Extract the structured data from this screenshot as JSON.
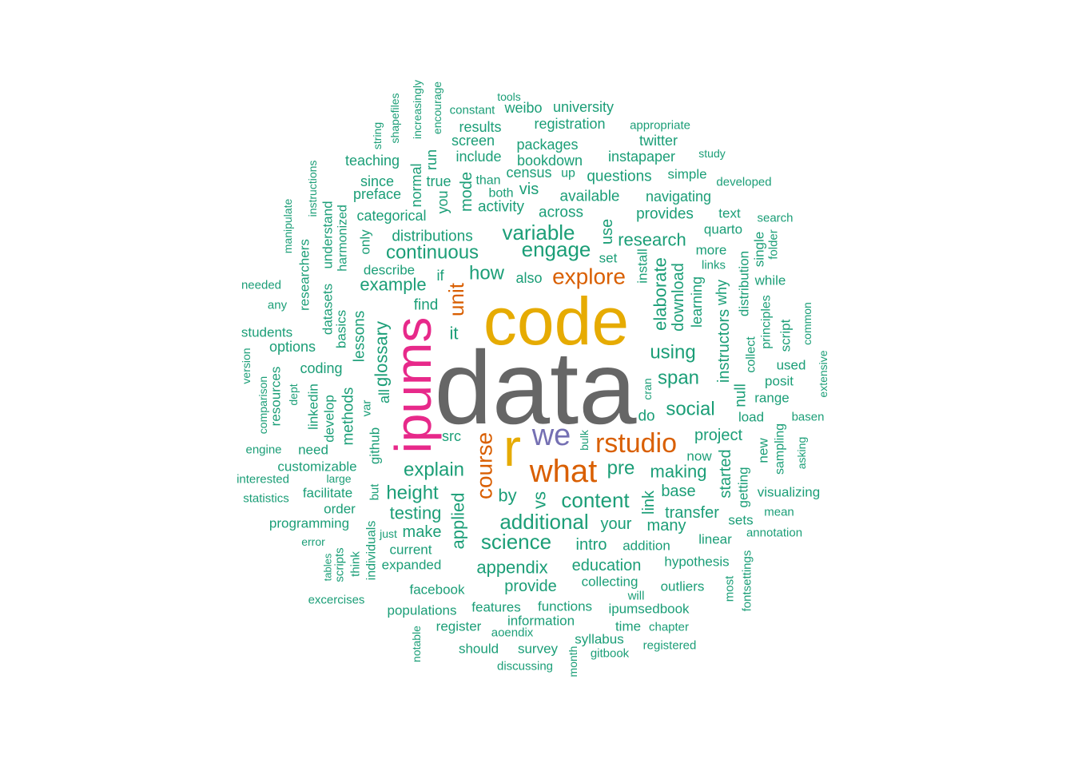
{
  "palette": {
    "grey": "#666666",
    "gold": "#E6AB02",
    "magenta": "#E7298A",
    "purple": "#7570B3",
    "orange": "#D95F02",
    "teal": "#1B9E77"
  },
  "words": [
    {
      "text": "data",
      "color": "grey"
    },
    {
      "text": "code",
      "color": "gold"
    },
    {
      "text": "ipums",
      "color": "magenta"
    },
    {
      "text": "r",
      "color": "gold"
    },
    {
      "text": "we",
      "color": "purple"
    },
    {
      "text": "rstudio",
      "color": "orange"
    },
    {
      "text": "what",
      "color": "orange"
    },
    {
      "text": "course",
      "color": "orange"
    },
    {
      "text": "explore",
      "color": "orange"
    },
    {
      "text": "unit",
      "color": "orange"
    },
    {
      "text": "variable",
      "color": "teal"
    },
    {
      "text": "engage",
      "color": "teal"
    },
    {
      "text": "continuous",
      "color": "teal"
    },
    {
      "text": "research",
      "color": "teal"
    },
    {
      "text": "example",
      "color": "teal"
    },
    {
      "text": "how",
      "color": "teal"
    },
    {
      "text": "elaborate",
      "color": "teal"
    },
    {
      "text": "using",
      "color": "teal"
    },
    {
      "text": "span",
      "color": "teal"
    },
    {
      "text": "social",
      "color": "teal"
    },
    {
      "text": "glossary",
      "color": "teal"
    },
    {
      "text": "explain",
      "color": "teal"
    },
    {
      "text": "height",
      "color": "teal"
    },
    {
      "text": "additional",
      "color": "teal"
    },
    {
      "text": "content",
      "color": "teal"
    },
    {
      "text": "science",
      "color": "teal"
    },
    {
      "text": "testing",
      "color": "teal"
    },
    {
      "text": "applied",
      "color": "teal"
    },
    {
      "text": "appendix",
      "color": "teal"
    },
    {
      "text": "making",
      "color": "teal"
    },
    {
      "text": "project",
      "color": "teal"
    },
    {
      "text": "pre",
      "color": "teal"
    },
    {
      "text": "vs",
      "color": "teal"
    },
    {
      "text": "by",
      "color": "teal"
    },
    {
      "text": "link",
      "color": "teal"
    },
    {
      "text": "base",
      "color": "teal"
    },
    {
      "text": "transfer",
      "color": "teal"
    },
    {
      "text": "your",
      "color": "teal"
    },
    {
      "text": "many",
      "color": "teal"
    },
    {
      "text": "intro",
      "color": "teal"
    },
    {
      "text": "education",
      "color": "teal"
    },
    {
      "text": "provide",
      "color": "teal"
    },
    {
      "text": "make",
      "color": "teal"
    },
    {
      "text": "download",
      "color": "teal"
    },
    {
      "text": "instructors",
      "color": "teal"
    },
    {
      "text": "started",
      "color": "teal"
    },
    {
      "text": "distributions",
      "color": "teal"
    },
    {
      "text": "across",
      "color": "teal"
    },
    {
      "text": "activity",
      "color": "teal"
    },
    {
      "text": "available",
      "color": "teal"
    },
    {
      "text": "provides",
      "color": "teal"
    },
    {
      "text": "questions",
      "color": "teal"
    },
    {
      "text": "navigating",
      "color": "teal"
    },
    {
      "text": "instapaper",
      "color": "teal"
    },
    {
      "text": "bookdown",
      "color": "teal"
    },
    {
      "text": "packages",
      "color": "teal"
    },
    {
      "text": "twitter",
      "color": "teal"
    },
    {
      "text": "university",
      "color": "teal"
    },
    {
      "text": "weibo",
      "color": "teal"
    },
    {
      "text": "registration",
      "color": "teal"
    },
    {
      "text": "results",
      "color": "teal"
    },
    {
      "text": "screen",
      "color": "teal"
    },
    {
      "text": "include",
      "color": "teal"
    },
    {
      "text": "census",
      "color": "teal"
    },
    {
      "text": "up",
      "color": "teal"
    },
    {
      "text": "vis",
      "color": "teal"
    },
    {
      "text": "both",
      "color": "teal"
    },
    {
      "text": "than",
      "color": "teal"
    },
    {
      "text": "mode",
      "color": "teal"
    },
    {
      "text": "true",
      "color": "teal"
    },
    {
      "text": "run",
      "color": "teal"
    },
    {
      "text": "normal",
      "color": "teal"
    },
    {
      "text": "you",
      "color": "teal"
    },
    {
      "text": "increasingly",
      "color": "teal"
    },
    {
      "text": "encourage",
      "color": "teal"
    },
    {
      "text": "tools",
      "color": "teal"
    },
    {
      "text": "constant",
      "color": "teal"
    },
    {
      "text": "appropriate",
      "color": "teal"
    },
    {
      "text": "study",
      "color": "teal"
    },
    {
      "text": "simple",
      "color": "teal"
    },
    {
      "text": "developed",
      "color": "teal"
    },
    {
      "text": "teaching",
      "color": "teal"
    },
    {
      "text": "since",
      "color": "teal"
    },
    {
      "text": "preface",
      "color": "teal"
    },
    {
      "text": "categorical",
      "color": "teal"
    },
    {
      "text": "only",
      "color": "teal"
    },
    {
      "text": "describe",
      "color": "teal"
    },
    {
      "text": "if",
      "color": "teal"
    },
    {
      "text": "find",
      "color": "teal"
    },
    {
      "text": "it",
      "color": "teal"
    },
    {
      "text": "also",
      "color": "teal"
    },
    {
      "text": "use",
      "color": "teal"
    },
    {
      "text": "set",
      "color": "teal"
    },
    {
      "text": "install",
      "color": "teal"
    },
    {
      "text": "more",
      "color": "teal"
    },
    {
      "text": "links",
      "color": "teal"
    },
    {
      "text": "quarto",
      "color": "teal"
    },
    {
      "text": "text",
      "color": "teal"
    },
    {
      "text": "search",
      "color": "teal"
    },
    {
      "text": "folder",
      "color": "teal"
    },
    {
      "text": "single",
      "color": "teal"
    },
    {
      "text": "while",
      "color": "teal"
    },
    {
      "text": "principles",
      "color": "teal"
    },
    {
      "text": "distribution",
      "color": "teal"
    },
    {
      "text": "why",
      "color": "teal"
    },
    {
      "text": "learning",
      "color": "teal"
    },
    {
      "text": "collect",
      "color": "teal"
    },
    {
      "text": "script",
      "color": "teal"
    },
    {
      "text": "common",
      "color": "teal"
    },
    {
      "text": "used",
      "color": "teal"
    },
    {
      "text": "posit",
      "color": "teal"
    },
    {
      "text": "range",
      "color": "teal"
    },
    {
      "text": "extensive",
      "color": "teal"
    },
    {
      "text": "load",
      "color": "teal"
    },
    {
      "text": "basen",
      "color": "teal"
    },
    {
      "text": "null",
      "color": "teal"
    },
    {
      "text": "cran",
      "color": "teal"
    },
    {
      "text": "do",
      "color": "teal"
    },
    {
      "text": "bulk",
      "color": "teal"
    },
    {
      "text": "now",
      "color": "teal"
    },
    {
      "text": "new",
      "color": "teal"
    },
    {
      "text": "sampling",
      "color": "teal"
    },
    {
      "text": "asking",
      "color": "teal"
    },
    {
      "text": "getting",
      "color": "teal"
    },
    {
      "text": "visualizing",
      "color": "teal"
    },
    {
      "text": "sets",
      "color": "teal"
    },
    {
      "text": "mean",
      "color": "teal"
    },
    {
      "text": "linear",
      "color": "teal"
    },
    {
      "text": "annotation",
      "color": "teal"
    },
    {
      "text": "addition",
      "color": "teal"
    },
    {
      "text": "hypothesis",
      "color": "teal"
    },
    {
      "text": "fontsettings",
      "color": "teal"
    },
    {
      "text": "students",
      "color": "teal"
    },
    {
      "text": "most",
      "color": "teal"
    },
    {
      "text": "outliers",
      "color": "teal"
    },
    {
      "text": "collecting",
      "color": "teal"
    },
    {
      "text": "will",
      "color": "teal"
    },
    {
      "text": "ipumsedbook",
      "color": "teal"
    },
    {
      "text": "time",
      "color": "teal"
    },
    {
      "text": "chapter",
      "color": "teal"
    },
    {
      "text": "syllabus",
      "color": "teal"
    },
    {
      "text": "registered",
      "color": "teal"
    },
    {
      "text": "gitbook",
      "color": "teal"
    },
    {
      "text": "month",
      "color": "teal"
    },
    {
      "text": "functions",
      "color": "teal"
    },
    {
      "text": "features",
      "color": "teal"
    },
    {
      "text": "information",
      "color": "teal"
    },
    {
      "text": "aoendix",
      "color": "teal"
    },
    {
      "text": "survey",
      "color": "teal"
    },
    {
      "text": "should",
      "color": "teal"
    },
    {
      "text": "discussing",
      "color": "teal"
    },
    {
      "text": "register",
      "color": "teal"
    },
    {
      "text": "notable",
      "color": "teal"
    },
    {
      "text": "populations",
      "color": "teal"
    },
    {
      "text": "facebook",
      "color": "teal"
    },
    {
      "text": "expanded",
      "color": "teal"
    },
    {
      "text": "current",
      "color": "teal"
    },
    {
      "text": "just",
      "color": "teal"
    },
    {
      "text": "individuals",
      "color": "teal"
    },
    {
      "text": "think",
      "color": "teal"
    },
    {
      "text": "scripts",
      "color": "teal"
    },
    {
      "text": "tables",
      "color": "teal"
    },
    {
      "text": "excercises",
      "color": "teal"
    },
    {
      "text": "error",
      "color": "teal"
    },
    {
      "text": "programming",
      "color": "teal"
    },
    {
      "text": "statistics",
      "color": "teal"
    },
    {
      "text": "order",
      "color": "teal"
    },
    {
      "text": "facilitate",
      "color": "teal"
    },
    {
      "text": "large",
      "color": "teal"
    },
    {
      "text": "interested",
      "color": "teal"
    },
    {
      "text": "customizable",
      "color": "teal"
    },
    {
      "text": "engine",
      "color": "teal"
    },
    {
      "text": "need",
      "color": "teal"
    },
    {
      "text": "but",
      "color": "teal"
    },
    {
      "text": "github",
      "color": "teal"
    },
    {
      "text": "src",
      "color": "teal"
    },
    {
      "text": "var",
      "color": "teal"
    },
    {
      "text": "methods",
      "color": "teal"
    },
    {
      "text": "develop",
      "color": "teal"
    },
    {
      "text": "linkedin",
      "color": "teal"
    },
    {
      "text": "dept",
      "color": "teal"
    },
    {
      "text": "resources",
      "color": "teal"
    },
    {
      "text": "comparison",
      "color": "teal"
    },
    {
      "text": "version",
      "color": "teal"
    },
    {
      "text": "coding",
      "color": "teal"
    },
    {
      "text": "options",
      "color": "teal"
    },
    {
      "text": "basics",
      "color": "teal"
    },
    {
      "text": "datasets",
      "color": "teal"
    },
    {
      "text": "lessons",
      "color": "teal"
    },
    {
      "text": "all",
      "color": "teal"
    },
    {
      "text": "any",
      "color": "teal"
    },
    {
      "text": "needed",
      "color": "teal"
    },
    {
      "text": "researchers",
      "color": "teal"
    },
    {
      "text": "manipulate",
      "color": "teal"
    },
    {
      "text": "understand",
      "color": "teal"
    },
    {
      "text": "instructions",
      "color": "teal"
    },
    {
      "text": "harmonized",
      "color": "teal"
    },
    {
      "text": "string",
      "color": "teal"
    },
    {
      "text": "shapefiles",
      "color": "teal"
    }
  ]
}
